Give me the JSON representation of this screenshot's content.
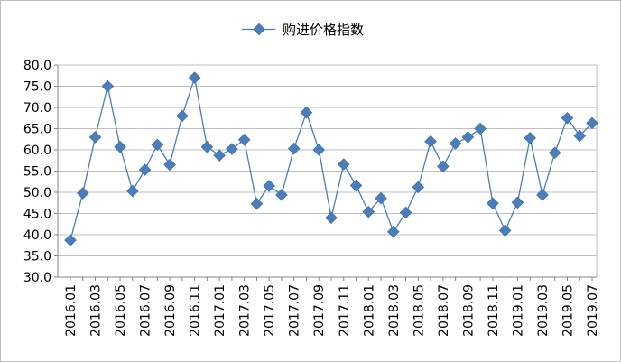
{
  "chart_data": {
    "type": "line",
    "legend_position": "top",
    "grid": true,
    "ylim": [
      30.0,
      80.0
    ],
    "yticks": [
      "30.0",
      "35.0",
      "40.0",
      "45.0",
      "50.0",
      "55.0",
      "60.0",
      "65.0",
      "70.0",
      "75.0",
      "80.0"
    ],
    "x": [
      "2016.01",
      "2016.02",
      "2016.03",
      "2016.04",
      "2016.05",
      "2016.06",
      "2016.07",
      "2016.08",
      "2016.09",
      "2016.10",
      "2016.11",
      "2016.12",
      "2017.01",
      "2017.02",
      "2017.03",
      "2017.04",
      "2017.05",
      "2017.06",
      "2017.07",
      "2017.08",
      "2017.09",
      "2017.10",
      "2017.11",
      "2017.12",
      "2018.01",
      "2018.02",
      "2018.03",
      "2018.04",
      "2018.05",
      "2018.06",
      "2018.07",
      "2018.08",
      "2018.09",
      "2018.10",
      "2018.11",
      "2018.12",
      "2019.01",
      "2019.02",
      "2019.03",
      "2019.04",
      "2019.05",
      "2019.06",
      "2019.07"
    ],
    "xticks": [
      "2016.01",
      "2016.03",
      "2016.05",
      "2016.07",
      "2016.09",
      "2016.11",
      "2017.01",
      "2017.03",
      "2017.05",
      "2017.07",
      "2017.09",
      "2017.11",
      "2018.01",
      "2018.03",
      "2018.05",
      "2018.07",
      "2018.09",
      "2018.11",
      "2019.01",
      "2019.03",
      "2019.05",
      "2019.07"
    ],
    "series": [
      {
        "name": "购进价格指数",
        "color": "#4a7ebb",
        "values": [
          38.7,
          49.8,
          63.0,
          75.0,
          60.7,
          50.3,
          55.3,
          61.2,
          56.5,
          68.0,
          77.0,
          60.7,
          58.7,
          60.2,
          62.4,
          47.3,
          51.5,
          49.4,
          60.3,
          68.8,
          60.0,
          44.0,
          56.6,
          51.6,
          45.4,
          48.6,
          40.7,
          45.2,
          51.2,
          62.0,
          56.1,
          61.5,
          63.0,
          65.0,
          47.4,
          41.0,
          47.6,
          62.8,
          49.4,
          59.3,
          67.5,
          63.3,
          66.3
        ]
      }
    ]
  }
}
